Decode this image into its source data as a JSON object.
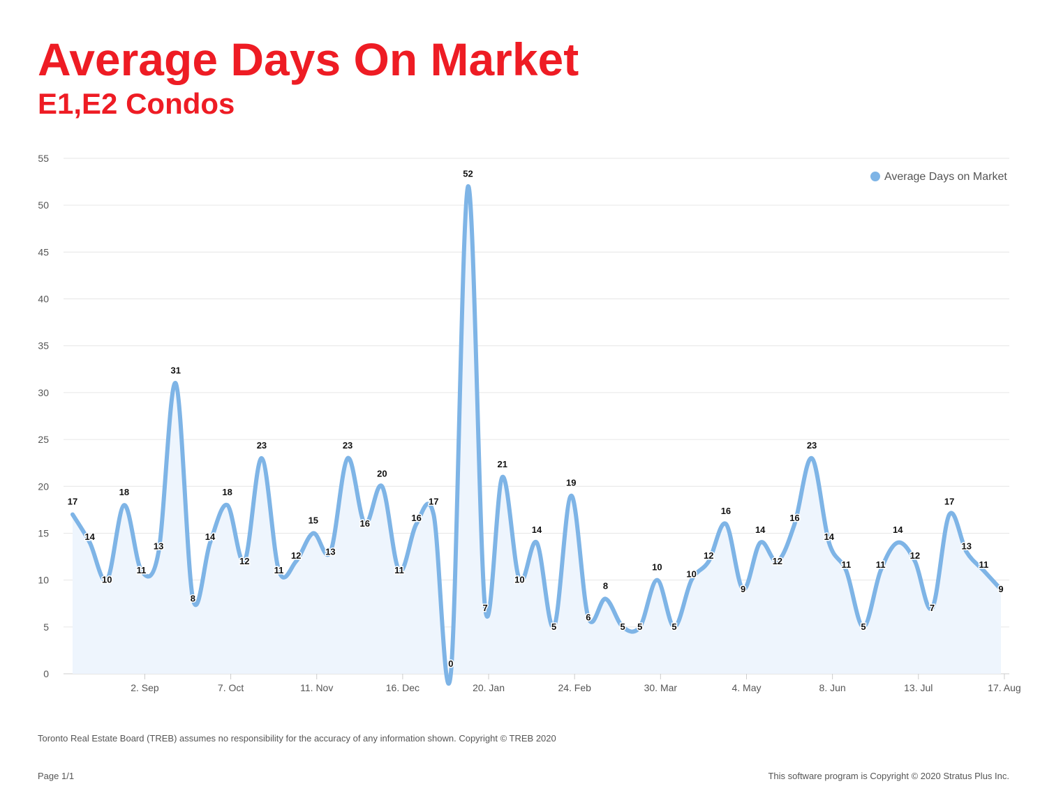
{
  "header": {
    "title": "Average Days On Market",
    "subtitle": "E1,E2 Condos"
  },
  "footer": {
    "disclaimer": "Toronto Real Estate Board (TREB) assumes no responsibility for the accuracy of any information shown. Copyright © TREB 2020",
    "page": "Page 1/1",
    "copyright": "This software program is Copyright © 2020 Stratus Plus Inc."
  },
  "colors": {
    "title": "#ee1c24",
    "series": "#7eb4e6",
    "area": "#eef5fd",
    "grid": "#e6e6e6"
  },
  "chart_data": {
    "type": "area",
    "x_tick_labels": [
      "2. Sep",
      "7. Oct",
      "11. Nov",
      "16. Dec",
      "20. Jan",
      "24. Feb",
      "30. Mar",
      "4. May",
      "8. Jun",
      "13. Jul",
      "17. Aug"
    ],
    "x_tick_positions": [
      4.2,
      9.2,
      14.2,
      19.2,
      24.2,
      29.2,
      34.2,
      39.2,
      44.2,
      49.2,
      54.2
    ],
    "ylim": [
      0,
      55
    ],
    "y_ticks": [
      0,
      5,
      10,
      15,
      20,
      25,
      30,
      35,
      40,
      45,
      50,
      55
    ],
    "grid": true,
    "legend": "top-right",
    "series": [
      {
        "name": "Average Days on Market",
        "values": [
          17,
          14,
          10,
          18,
          11,
          13,
          31,
          8,
          14,
          18,
          12,
          23,
          11,
          12,
          15,
          13,
          23,
          16,
          20,
          11,
          16,
          17,
          0,
          52,
          7,
          21,
          10,
          14,
          5,
          19,
          6,
          8,
          5,
          5,
          10,
          5,
          10,
          12,
          16,
          9,
          14,
          12,
          16,
          23,
          14,
          11,
          5,
          11,
          14,
          12,
          7,
          17,
          13,
          11,
          9
        ]
      }
    ]
  }
}
